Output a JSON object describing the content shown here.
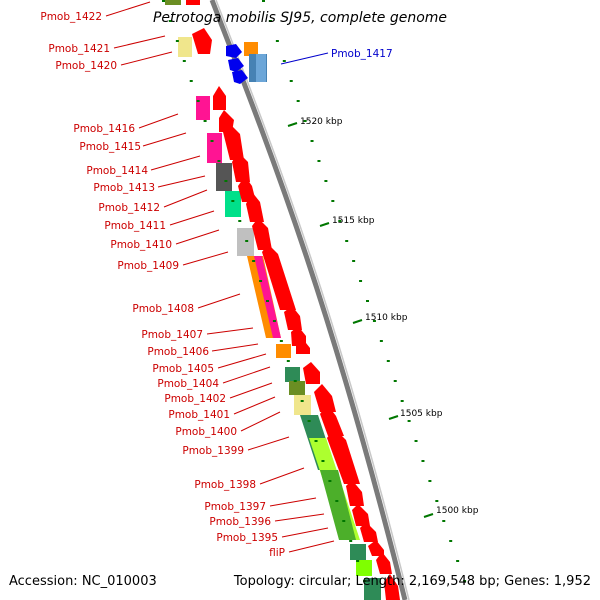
{
  "title": "Petrotoga mobilis SJ95, complete genome",
  "accession": "Accession: NC_010003",
  "topology": "Topology: circular; Length: 2,169,548 bp; Genes: 1,952",
  "colors": {
    "backbone": "#777777",
    "feature_red": "#ff0000",
    "label_red": "#cc0000",
    "highlight_blue": "#0000cc",
    "tick_green": "#007700"
  },
  "scale_ticks": [
    "1520 kbp",
    "1515 kbp",
    "1510 kbp",
    "1505 kbp",
    "1500 kbp"
  ],
  "gene_labels": [
    "Pmob_1422",
    "Pmob_1421",
    "Pmob_1420",
    "Pmob_1416",
    "Pmob_1415",
    "Pmob_1414",
    "Pmob_1413",
    "Pmob_1412",
    "Pmob_1411",
    "Pmob_1410",
    "Pmob_1409",
    "Pmob_1408",
    "Pmob_1407",
    "Pmob_1406",
    "Pmob_1405",
    "Pmob_1404",
    "Pmob_1402",
    "Pmob_1401",
    "Pmob_1400",
    "Pmob_1399",
    "Pmob_1398",
    "Pmob_1397",
    "Pmob_1396",
    "Pmob_1395",
    "fliP"
  ],
  "highlight_label": "Pmob_1417"
}
